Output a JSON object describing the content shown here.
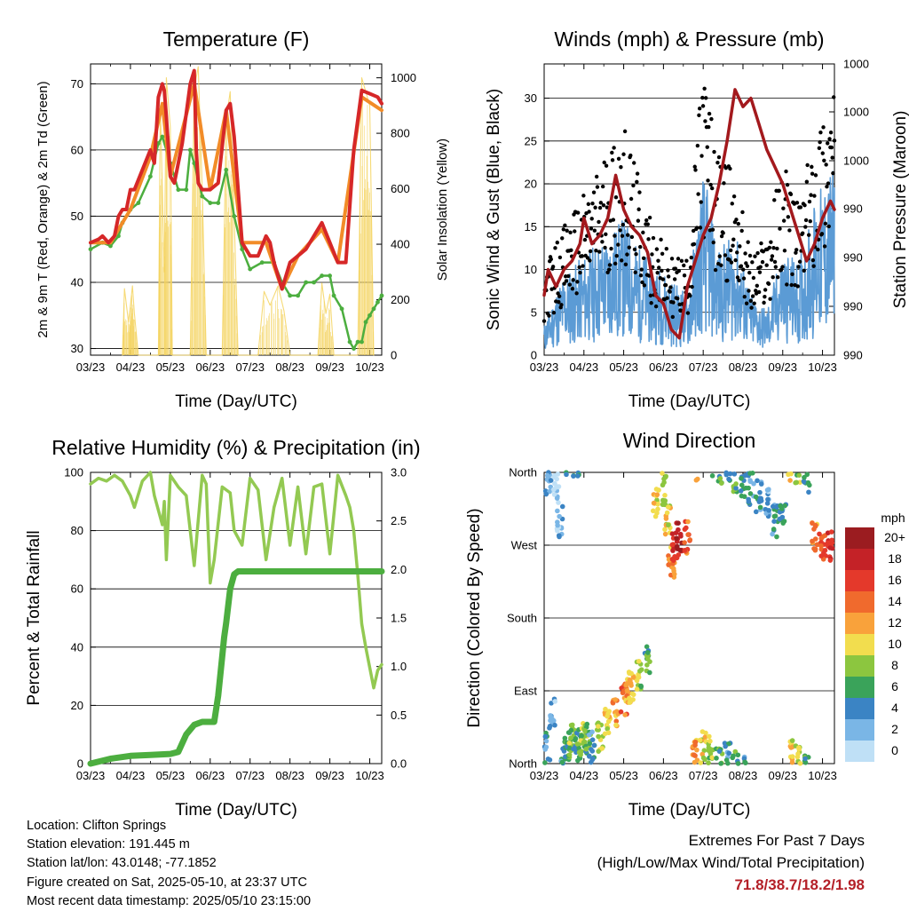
{
  "charts": [
    {
      "title": "Temperature (F)",
      "xlabel": "Time (Day/UTC)",
      "ylabel_left": "2m & 9m T (Red, Orange) & 2m Td (Green)",
      "ylabel_right": "Solar Insolation (Yellow)"
    },
    {
      "title": "Winds (mph) & Pressure (mb)",
      "xlabel": "Time (Day/UTC)",
      "ylabel_left": "Sonic Wind & Gust (Blue, Black)",
      "ylabel_right": "Station Pressure (Maroon)"
    },
    {
      "title": "Relative Humidity (%) & Precipitation (in)",
      "xlabel": "Time (Day/UTC)",
      "ylabel_left": "Percent & Total Rainfall",
      "ylabel_right": ""
    },
    {
      "title": "Wind Direction",
      "xlabel": "Time (Day/UTC)",
      "ylabel_left": "Direction (Colored By Speed)",
      "ylabel_right": ""
    }
  ],
  "legend": {
    "title": "mph",
    "labels": [
      "20+",
      "18",
      "16",
      "14",
      "12",
      "10",
      "8",
      "6",
      "4",
      "2",
      "0"
    ],
    "colors": [
      "#9b1c20",
      "#c42227",
      "#e4392b",
      "#f06a2d",
      "#f9a23b",
      "#f2dd4e",
      "#8cc63f",
      "#3aa35a",
      "#3b84c4",
      "#7ab6e6",
      "#bfe0f6"
    ]
  },
  "info": {
    "location": "Location: Clifton Springs",
    "elevation": "Station elevation: 191.445 m",
    "latlon": "Station lat/lon: 43.0148; -77.1852",
    "created": "Figure created on Sat, 2025-05-10, at 23:37 UTC",
    "latest": "Most recent data timestamp: 2025/05/10 23:15:00"
  },
  "extremes": {
    "line1": "Extremes For Past 7 Days",
    "line2": "(High/Low/Max Wind/Total Precipitation)",
    "values": "71.8/38.7/18.2/1.98"
  },
  "chart_data": [
    {
      "type": "line",
      "title": "Temperature (F)",
      "x_ticks": [
        "03/23",
        "04/23",
        "05/23",
        "06/23",
        "07/23",
        "08/23",
        "09/23",
        "10/23"
      ],
      "ylim": [
        29,
        73
      ],
      "y_ticks": [
        30,
        40,
        50,
        60,
        70
      ],
      "y2lim": [
        0,
        1050
      ],
      "y2_ticks": [
        0,
        200,
        400,
        600,
        800,
        1000
      ],
      "series": [
        {
          "name": "2m T",
          "color": "#d62728",
          "x": [
            0,
            0.2,
            0.3,
            0.45,
            0.6,
            0.7,
            0.8,
            0.9,
            1.0,
            1.1,
            1.3,
            1.5,
            1.6,
            1.7,
            1.8,
            1.85,
            1.9,
            2.0,
            2.1,
            2.3,
            2.5,
            2.6,
            2.65,
            2.7,
            2.8,
            3.0,
            3.2,
            3.4,
            3.5,
            3.6,
            3.8,
            4.0,
            4.2,
            4.4,
            4.5,
            4.6,
            4.8,
            5.0,
            5.2,
            5.4,
            5.6,
            5.8,
            6.0,
            6.2,
            6.4,
            6.6,
            6.8,
            7.0,
            7.2,
            7.3
          ],
          "values": [
            46,
            46.5,
            47,
            46,
            47,
            50,
            51,
            51,
            54,
            54,
            57,
            60,
            58,
            68,
            70,
            69,
            65,
            56,
            55,
            61,
            70,
            72,
            60,
            55,
            54,
            54,
            55,
            66,
            67,
            62,
            46,
            44,
            44,
            47,
            46,
            43,
            39,
            43,
            44,
            45,
            47,
            49,
            46,
            43,
            43,
            60,
            69,
            68.5,
            68,
            67
          ]
        },
        {
          "name": "9m T",
          "color": "#f28c28",
          "x": [
            0,
            0.5,
            1.0,
            1.5,
            1.8,
            2.0,
            2.6,
            3.0,
            3.4,
            3.8,
            4.4,
            4.8,
            5.2,
            5.8,
            6.2,
            6.8,
            7.3
          ],
          "values": [
            46,
            46,
            51,
            59,
            67,
            56,
            70,
            54,
            66,
            46,
            46,
            39,
            44,
            48,
            43,
            68,
            66
          ]
        },
        {
          "name": "2m Td",
          "color": "#4cae3f",
          "x": [
            0,
            0.3,
            0.5,
            0.7,
            0.8,
            1.0,
            1.2,
            1.5,
            1.7,
            1.8,
            2.0,
            2.2,
            2.4,
            2.5,
            2.6,
            2.8,
            3.0,
            3.2,
            3.4,
            3.6,
            3.8,
            4.0,
            4.3,
            4.6,
            4.8,
            5.0,
            5.2,
            5.4,
            5.6,
            5.8,
            6.0,
            6.1,
            6.3,
            6.5,
            6.6,
            6.7,
            6.8,
            6.9,
            7.0,
            7.1,
            7.2,
            7.3
          ],
          "values": [
            45,
            46,
            45.5,
            47,
            49,
            51,
            52,
            56,
            61,
            62,
            58,
            54,
            54,
            60,
            58,
            53,
            52,
            52,
            57,
            50,
            45,
            42,
            43,
            43,
            40,
            38,
            38,
            40,
            40,
            41,
            41,
            38,
            36,
            31,
            30,
            31,
            31,
            34,
            35,
            36,
            37,
            38
          ]
        },
        {
          "name": "Solar Insolation",
          "color": "#f4d35e",
          "axis": "right",
          "x": [
            0.8,
            0.85,
            0.95,
            1.0,
            1.05,
            1.1,
            1.2,
            1.7,
            1.75,
            1.85,
            1.9,
            2.0,
            2.05,
            2.5,
            2.6,
            2.7,
            2.8,
            2.9,
            3.3,
            3.4,
            3.5,
            3.6,
            3.7,
            4.2,
            4.35,
            4.5,
            4.7,
            4.85,
            5.0,
            5.7,
            5.8,
            5.9,
            6.0,
            6.1,
            6.7,
            6.8,
            6.9,
            7.0,
            7.1
          ],
          "values": [
            0,
            240,
            120,
            180,
            250,
            150,
            0,
            0,
            900,
            300,
            1000,
            820,
            0,
            0,
            960,
            1040,
            600,
            0,
            0,
            850,
            950,
            500,
            0,
            0,
            230,
            180,
            250,
            160,
            0,
            0,
            260,
            150,
            220,
            0,
            0,
            1000,
            950,
            900,
            0
          ]
        }
      ]
    },
    {
      "type": "line",
      "title": "Winds (mph) & Pressure (mb)",
      "x_ticks": [
        "03/23",
        "04/23",
        "05/23",
        "06/23",
        "07/23",
        "08/23",
        "09/23",
        "10/23"
      ],
      "ylim": [
        0,
        34
      ],
      "y_ticks": [
        0,
        5,
        10,
        15,
        20,
        25,
        30
      ],
      "y2_ticks": [
        "990",
        "990",
        "990",
        "990",
        "1000",
        "1000",
        "1000"
      ],
      "series": [
        {
          "name": "Station Pressure",
          "color": "#a3191d",
          "x": [
            0,
            0.1,
            0.3,
            0.5,
            0.7,
            0.9,
            1.0,
            1.2,
            1.4,
            1.6,
            1.8,
            2.0,
            2.2,
            2.4,
            2.6,
            2.8,
            3.0,
            3.2,
            3.4,
            3.6,
            3.8,
            4.0,
            4.2,
            4.4,
            4.6,
            4.8,
            5.0,
            5.2,
            5.4,
            5.6,
            5.8,
            6.0,
            6.2,
            6.4,
            6.6,
            6.8,
            7.0,
            7.2,
            7.3
          ],
          "values": [
            7,
            10,
            8,
            10,
            11,
            13,
            16,
            13,
            14,
            16,
            21,
            17,
            15,
            14,
            12,
            7,
            6,
            3,
            2,
            8,
            11,
            14,
            16,
            20,
            25,
            31,
            29,
            30,
            27,
            24,
            22,
            20,
            17,
            14,
            11,
            13,
            16,
            18,
            17
          ]
        },
        {
          "name": "Sonic Wind",
          "color": "#5b9bd5",
          "x": [
            0,
            0.4,
            0.8,
            1.2,
            1.6,
            2.0,
            2.4,
            2.8,
            3.2,
            3.6,
            4.0,
            4.4,
            4.8,
            5.2,
            5.6,
            6.0,
            6.4,
            6.8,
            7.2
          ],
          "values": [
            2,
            5,
            6,
            7,
            8,
            9,
            7,
            6,
            5,
            4,
            12,
            7,
            8,
            4,
            3,
            7,
            6,
            10,
            12
          ]
        },
        {
          "name": "Gust",
          "color": "#000000",
          "x": [
            0,
            0.4,
            0.8,
            1.2,
            1.6,
            2.0,
            2.4,
            2.8,
            3.2,
            3.6,
            4.0,
            4.4,
            4.8,
            5.2,
            5.6,
            6.0,
            6.4,
            6.8,
            7.2
          ],
          "values": [
            7,
            10,
            12,
            14,
            17,
            19,
            14,
            10,
            8,
            8,
            24,
            16,
            15,
            8,
            10,
            16,
            12,
            18,
            22
          ]
        }
      ]
    },
    {
      "type": "line",
      "title": "Relative Humidity (%) & Precipitation (in)",
      "x_ticks": [
        "03/23",
        "04/23",
        "05/23",
        "06/23",
        "07/23",
        "08/23",
        "09/23",
        "10/23"
      ],
      "ylim": [
        0,
        100
      ],
      "y_ticks": [
        0,
        20,
        40,
        60,
        80,
        100
      ],
      "y2lim": [
        0,
        3.0
      ],
      "y2_ticks": [
        0.0,
        0.5,
        1.0,
        1.5,
        2.0,
        2.5,
        3.0
      ],
      "series": [
        {
          "name": "Relative Humidity",
          "color": "#93c952",
          "x": [
            0,
            0.2,
            0.4,
            0.6,
            0.8,
            1.0,
            1.1,
            1.3,
            1.5,
            1.6,
            1.8,
            1.85,
            1.9,
            2.0,
            2.2,
            2.4,
            2.6,
            2.8,
            2.9,
            3.0,
            3.1,
            3.3,
            3.5,
            3.6,
            3.8,
            4.0,
            4.2,
            4.4,
            4.6,
            4.8,
            5.0,
            5.2,
            5.4,
            5.6,
            5.8,
            6.0,
            6.2,
            6.4,
            6.5,
            6.6,
            6.7,
            6.8,
            6.9,
            7.0,
            7.1,
            7.2,
            7.3
          ],
          "values": [
            96,
            98,
            97,
            99,
            97,
            92,
            88,
            97,
            100,
            92,
            82,
            90,
            70,
            99,
            95,
            92,
            68,
            99,
            96,
            62,
            70,
            95,
            93,
            80,
            75,
            98,
            94,
            70,
            88,
            98,
            75,
            95,
            72,
            95,
            96,
            72,
            99,
            92,
            88,
            80,
            65,
            48,
            40,
            33,
            26,
            32,
            34
          ]
        },
        {
          "name": "Total Rainfall",
          "color": "#4cae3f",
          "axis": "right",
          "x": [
            0,
            0.5,
            1.0,
            1.5,
            2.0,
            2.2,
            2.4,
            2.6,
            2.8,
            3.1,
            3.2,
            3.3,
            3.35,
            3.4,
            3.5,
            3.6,
            3.7,
            3.8,
            4.0,
            5.0,
            6.0,
            7.0,
            7.3
          ],
          "values": [
            0.0,
            0.05,
            0.08,
            0.09,
            0.1,
            0.12,
            0.3,
            0.4,
            0.43,
            0.43,
            0.7,
            1.1,
            1.3,
            1.45,
            1.8,
            1.95,
            1.98,
            1.98,
            1.98,
            1.98,
            1.98,
            1.98,
            1.98
          ]
        }
      ]
    },
    {
      "type": "scatter",
      "title": "Wind Direction",
      "x_ticks": [
        "03/23",
        "04/23",
        "05/23",
        "06/23",
        "07/23",
        "08/23",
        "09/23",
        "10/23"
      ],
      "y_ticks": [
        "North",
        "West",
        "South",
        "East",
        "North"
      ],
      "ylim": [
        0,
        360
      ],
      "series": [
        {
          "name": "Direction",
          "x": [
            0.0,
            0.1,
            0.2,
            0.3,
            0.4,
            0.5,
            0.6,
            0.7,
            0.8,
            0.9,
            1.0,
            1.1,
            1.2,
            1.4,
            1.6,
            1.8,
            2.0,
            2.1,
            2.2,
            2.4,
            2.6,
            2.8,
            3.0,
            3.1,
            3.2,
            3.3,
            3.4,
            3.6,
            3.8,
            4.0,
            4.2,
            4.4,
            4.6,
            4.8,
            5.0,
            5.2,
            5.4,
            5.6,
            5.8,
            6.0,
            6.2,
            6.4,
            6.6,
            6.8,
            7.0,
            7.2
          ],
          "values": [
            20,
            350,
            60,
            340,
            300,
            10,
            20,
            30,
            15,
            25,
            40,
            30,
            20,
            35,
            50,
            60,
            80,
            90,
            95,
            110,
            130,
            320,
            340,
            300,
            250,
            270,
            280,
            280,
            10,
            20,
            15,
            5,
            10,
            355,
            350,
            340,
            330,
            320,
            300,
            310,
            10,
            5,
            350,
            280,
            270,
            270
          ],
          "speeds": [
            4,
            2,
            2,
            0,
            2,
            4,
            6,
            8,
            4,
            6,
            8,
            6,
            4,
            8,
            10,
            12,
            14,
            12,
            10,
            8,
            6,
            10,
            8,
            10,
            12,
            16,
            18,
            14,
            12,
            10,
            8,
            6,
            4,
            6,
            4,
            4,
            4,
            2,
            4,
            4,
            10,
            8,
            6,
            12,
            14,
            16
          ]
        }
      ]
    }
  ]
}
